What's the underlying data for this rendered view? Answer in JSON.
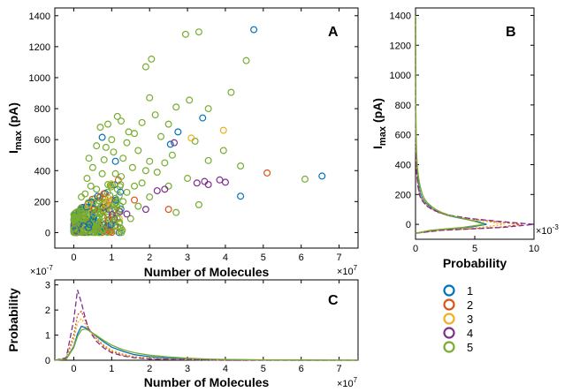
{
  "colors": {
    "s1": "#0072BD",
    "s2": "#D95319",
    "s3": "#EDB120",
    "s4": "#7E2F8E",
    "s5": "#77AC30"
  },
  "chart_data": [
    {
      "id": "A",
      "type": "scatter",
      "panel_label": "A",
      "xlabel": "Number of Molecules",
      "ylabel_main": "I",
      "ylabel_sub": "max",
      "ylabel_unit": "(pA)",
      "x_multiplier": "×10",
      "x_multiplier_exp": "7",
      "xlim": [
        -0.5,
        7.5
      ],
      "ylim": [
        -100,
        1450
      ],
      "xticks": [
        0,
        1,
        2,
        3,
        4,
        5,
        6,
        7
      ],
      "yticks": [
        0,
        200,
        400,
        600,
        800,
        1000,
        1200,
        1400
      ],
      "series": [
        {
          "name": "1",
          "points": [
            [
              4.75,
              1310
            ],
            [
              6.55,
              365
            ],
            [
              4.4,
              235
            ],
            [
              3.4,
              740
            ],
            [
              2.75,
              650
            ],
            [
              2.55,
              570
            ],
            [
              0.75,
              615
            ],
            [
              1.1,
              460
            ],
            [
              0.5,
              150
            ],
            [
              0.3,
              90
            ]
          ]
        },
        {
          "name": "2",
          "points": [
            [
              5.1,
              385
            ],
            [
              2.5,
              150
            ],
            [
              1.6,
              210
            ],
            [
              0.9,
              120
            ],
            [
              0.5,
              60
            ]
          ]
        },
        {
          "name": "3",
          "points": [
            [
              3.95,
              660
            ],
            [
              3.1,
              610
            ],
            [
              1.2,
              90
            ],
            [
              0.8,
              140
            ],
            [
              0.4,
              60
            ]
          ]
        },
        {
          "name": "4",
          "points": [
            [
              4.0,
              325
            ],
            [
              3.55,
              310
            ],
            [
              3.85,
              340
            ],
            [
              3.45,
              330
            ],
            [
              2.65,
              580
            ],
            [
              2.4,
              280
            ],
            [
              2.2,
              270
            ],
            [
              3.25,
              320
            ],
            [
              1.9,
              150
            ],
            [
              1.4,
              120
            ],
            [
              1.0,
              100
            ]
          ]
        },
        {
          "name": "5",
          "points": [
            [
              2.95,
              1280
            ],
            [
              3.3,
              1295
            ],
            [
              2.05,
              1120
            ],
            [
              1.9,
              1070
            ],
            [
              4.55,
              1110
            ],
            [
              4.15,
              905
            ],
            [
              3.05,
              855
            ],
            [
              2.7,
              810
            ],
            [
              3.55,
              800
            ],
            [
              2.0,
              870
            ],
            [
              1.15,
              750
            ],
            [
              1.25,
              720
            ],
            [
              1.8,
              710
            ],
            [
              2.15,
              760
            ],
            [
              2.5,
              700
            ],
            [
              0.9,
              700
            ],
            [
              0.7,
              680
            ],
            [
              1.6,
              640
            ],
            [
              2.3,
              620
            ],
            [
              3.2,
              590
            ],
            [
              3.95,
              530
            ],
            [
              1.4,
              580
            ],
            [
              0.6,
              560
            ],
            [
              1.0,
              600
            ],
            [
              1.7,
              530
            ],
            [
              2.6,
              500
            ],
            [
              1.3,
              480
            ],
            [
              0.8,
              470
            ],
            [
              2.0,
              460
            ],
            [
              3.55,
              465
            ],
            [
              4.4,
              430
            ],
            [
              1.55,
              420
            ],
            [
              0.5,
              420
            ],
            [
              1.1,
              380
            ],
            [
              2.2,
              390
            ],
            [
              3.0,
              350
            ],
            [
              6.1,
              345
            ],
            [
              0.35,
              350
            ],
            [
              1.8,
              320
            ],
            [
              0.9,
              310
            ],
            [
              2.5,
              300
            ],
            [
              0.6,
              280
            ],
            [
              1.4,
              260
            ],
            [
              0.3,
              250
            ],
            [
              2.0,
              230
            ],
            [
              1.1,
              220
            ],
            [
              0.45,
              200
            ],
            [
              3.3,
              180
            ],
            [
              2.7,
              130
            ],
            [
              1.7,
              170
            ],
            [
              0.8,
              180
            ],
            [
              0.2,
              160
            ],
            [
              1.2,
              140
            ],
            [
              0.5,
              130
            ],
            [
              0.15,
              110
            ],
            [
              0.9,
              100
            ],
            [
              0.35,
              90
            ],
            [
              1.5,
              90
            ],
            [
              0.65,
              70
            ],
            [
              0.1,
              60
            ],
            [
              0.4,
              40
            ],
            [
              0.25,
              30
            ],
            [
              0.8,
              50
            ],
            [
              1.1,
              40
            ],
            [
              0.55,
              20
            ],
            [
              0.3,
              10
            ],
            [
              0.15,
              50
            ],
            [
              0.7,
              120
            ],
            [
              1.3,
              200
            ],
            [
              0.95,
              240
            ],
            [
              0.45,
              300
            ],
            [
              0.2,
              230
            ],
            [
              1.6,
              300
            ],
            [
              1.9,
              400
            ],
            [
              2.4,
              450
            ],
            [
              0.75,
              380
            ],
            [
              1.05,
              520
            ],
            [
              0.4,
              480
            ],
            [
              1.45,
              650
            ],
            [
              0.85,
              550
            ]
          ]
        }
      ]
    },
    {
      "id": "B",
      "type": "line",
      "panel_label": "B",
      "xlabel": "Probability",
      "ylabel_main": "I",
      "ylabel_sub": "max",
      "ylabel_unit": "(pA)",
      "x_multiplier": "×10",
      "x_multiplier_exp": "-3",
      "xlim": [
        0,
        10
      ],
      "ylim": [
        -100,
        1450
      ],
      "xticks": [
        0,
        5,
        10
      ],
      "yticks": [
        0,
        200,
        400,
        600,
        800,
        1000,
        1200,
        1400
      ],
      "y": [
        -60,
        -40,
        -20,
        0,
        20,
        40,
        60,
        80,
        100,
        120,
        140,
        160,
        180,
        200,
        250,
        300,
        350,
        400,
        500,
        600,
        800,
        1000,
        1200,
        1400
      ],
      "series": [
        {
          "name": "1",
          "values": [
            0.0,
            1.5,
            4.5,
            6.0,
            5.2,
            3.8,
            2.7,
            2.0,
            1.5,
            1.2,
            0.9,
            0.7,
            0.55,
            0.45,
            0.3,
            0.2,
            0.15,
            0.1,
            0.06,
            0.04,
            0.02,
            0.01,
            0.0,
            0.0
          ]
        },
        {
          "name": "2",
          "values": [
            0.0,
            2.0,
            7.0,
            9.0,
            6.5,
            4.2,
            2.8,
            1.9,
            1.4,
            1.0,
            0.8,
            0.6,
            0.45,
            0.35,
            0.22,
            0.15,
            0.1,
            0.06,
            0.03,
            0.02,
            0.01,
            0.0,
            0.0,
            0.0
          ]
        },
        {
          "name": "3",
          "values": [
            0.0,
            1.8,
            5.5,
            7.5,
            6.0,
            4.0,
            2.8,
            2.0,
            1.5,
            1.1,
            0.85,
            0.65,
            0.5,
            0.4,
            0.25,
            0.17,
            0.12,
            0.08,
            0.04,
            0.02,
            0.01,
            0.0,
            0.0,
            0.0
          ]
        },
        {
          "name": "4",
          "values": [
            0.0,
            2.2,
            7.5,
            10.0,
            7.0,
            4.5,
            3.0,
            2.0,
            1.4,
            1.0,
            0.75,
            0.55,
            0.42,
            0.33,
            0.22,
            0.15,
            0.1,
            0.06,
            0.03,
            0.02,
            0.0,
            0.0,
            0.0,
            0.0
          ]
        },
        {
          "name": "5",
          "values": [
            0.0,
            1.2,
            4.0,
            5.8,
            5.0,
            3.9,
            2.9,
            2.2,
            1.7,
            1.35,
            1.05,
            0.85,
            0.7,
            0.58,
            0.4,
            0.28,
            0.2,
            0.14,
            0.08,
            0.05,
            0.02,
            0.01,
            0.0,
            0.0
          ]
        }
      ]
    },
    {
      "id": "C",
      "type": "line",
      "panel_label": "C",
      "xlabel": "Number of Molecules",
      "ylabel": "Probability",
      "x_multiplier": "×10",
      "x_multiplier_exp": "7",
      "y_multiplier": "×10",
      "y_multiplier_exp": "-7",
      "xlim": [
        -0.5,
        7.5
      ],
      "ylim": [
        0,
        3.2
      ],
      "xticks": [
        0,
        1,
        2,
        3,
        4,
        5,
        6,
        7
      ],
      "yticks": [
        0,
        1,
        2,
        3
      ],
      "x": [
        -0.5,
        -0.2,
        0.0,
        0.1,
        0.2,
        0.3,
        0.4,
        0.6,
        0.8,
        1.0,
        1.3,
        1.6,
        2.0,
        2.5,
        3.0,
        3.5,
        4.0,
        5.0,
        6.0,
        7.0,
        7.5
      ],
      "series": [
        {
          "name": "1",
          "values": [
            0.0,
            0.05,
            0.55,
            1.05,
            1.35,
            1.3,
            1.2,
            0.95,
            0.72,
            0.52,
            0.35,
            0.22,
            0.14,
            0.08,
            0.05,
            0.03,
            0.02,
            0.01,
            0.0,
            0.0,
            0.0
          ]
        },
        {
          "name": "2",
          "values": [
            0.0,
            0.08,
            1.0,
            1.8,
            1.95,
            1.6,
            1.25,
            0.85,
            0.55,
            0.35,
            0.2,
            0.12,
            0.07,
            0.04,
            0.02,
            0.01,
            0.0,
            0.0,
            0.0,
            0.0,
            0.0
          ]
        },
        {
          "name": "3",
          "values": [
            0.0,
            0.06,
            0.8,
            1.5,
            1.65,
            1.45,
            1.2,
            0.88,
            0.6,
            0.4,
            0.25,
            0.15,
            0.09,
            0.05,
            0.03,
            0.02,
            0.01,
            0.0,
            0.0,
            0.0,
            0.0
          ]
        },
        {
          "name": "4",
          "values": [
            0.0,
            0.1,
            1.6,
            2.8,
            2.3,
            1.7,
            1.2,
            0.75,
            0.48,
            0.3,
            0.17,
            0.1,
            0.05,
            0.03,
            0.02,
            0.01,
            0.0,
            0.0,
            0.0,
            0.0,
            0.0
          ]
        },
        {
          "name": "5",
          "values": [
            0.0,
            0.04,
            0.5,
            0.95,
            1.2,
            1.25,
            1.18,
            0.98,
            0.78,
            0.6,
            0.42,
            0.3,
            0.2,
            0.13,
            0.08,
            0.05,
            0.03,
            0.015,
            0.01,
            0.005,
            0.0
          ]
        }
      ]
    }
  ],
  "legend": {
    "items": [
      {
        "label": "1",
        "color": "#0072BD"
      },
      {
        "label": "2",
        "color": "#D95319"
      },
      {
        "label": "3",
        "color": "#EDB120"
      },
      {
        "label": "4",
        "color": "#7E2F8E"
      },
      {
        "label": "5",
        "color": "#77AC30"
      }
    ]
  }
}
